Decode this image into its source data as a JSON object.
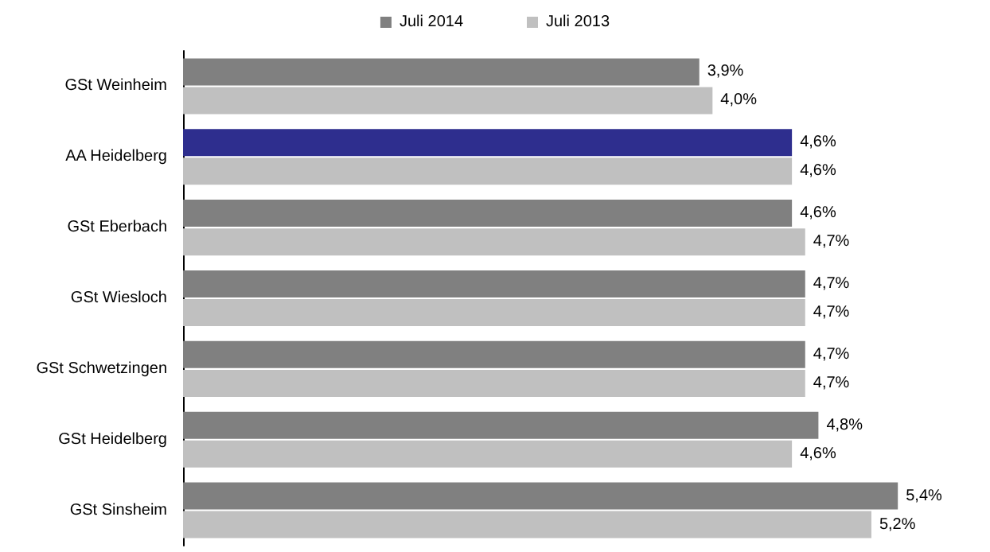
{
  "chart_data": {
    "type": "bar",
    "orientation": "horizontal",
    "legend": "top",
    "grid": false,
    "categories": [
      "GSt Weinheim",
      "AA Heidelberg",
      "GSt Eberbach",
      "GSt Wiesloch",
      "GSt Schwetzingen",
      "GSt Heidelberg",
      "GSt Sinsheim"
    ],
    "series": [
      {
        "name": "Juli 2014",
        "color": "#808080",
        "colors": [
          "#808080",
          "#2e2e8e",
          "#808080",
          "#808080",
          "#808080",
          "#808080",
          "#808080"
        ],
        "values": [
          3.9,
          4.6,
          4.6,
          4.7,
          4.7,
          4.8,
          5.4
        ],
        "value_labels": [
          "3,9%",
          "4,6%",
          "4,6%",
          "4,7%",
          "4,7%",
          "4,8%",
          "5,4%"
        ]
      },
      {
        "name": "Juli 2013",
        "color": "#c0c0c0",
        "values": [
          4.0,
          4.6,
          4.7,
          4.7,
          4.7,
          4.6,
          5.2
        ],
        "value_labels": [
          "4,0%",
          "4,6%",
          "4,7%",
          "4,7%",
          "4,7%",
          "4,6%",
          "5,2%"
        ]
      }
    ]
  }
}
